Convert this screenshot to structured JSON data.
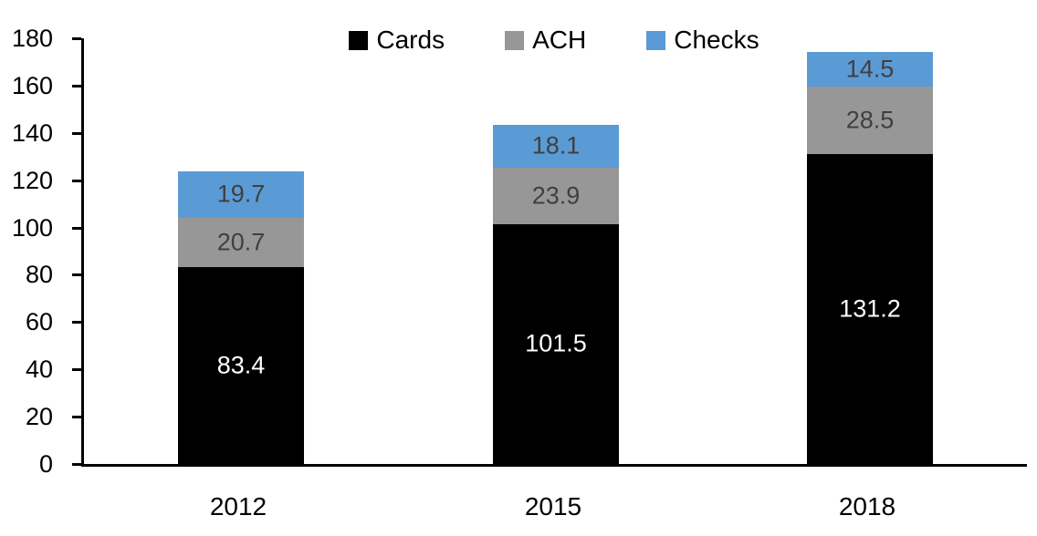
{
  "chart_data": {
    "type": "bar",
    "stacked": true,
    "title": "",
    "xlabel": "",
    "ylabel": "",
    "categories": [
      "2012",
      "2015",
      "2018"
    ],
    "series": [
      {
        "name": "Cards",
        "color": "#000000",
        "label_color": "#ffffff",
        "values": [
          83.4,
          101.5,
          131.2
        ]
      },
      {
        "name": "ACH",
        "color": "#979797",
        "label_color": "#404040",
        "values": [
          20.7,
          23.9,
          28.5
        ]
      },
      {
        "name": "Checks",
        "color": "#5b9bd5",
        "label_color": "#404040",
        "values": [
          19.7,
          18.1,
          14.5
        ]
      }
    ],
    "ylim": [
      0,
      180
    ],
    "ytick_step": 20,
    "ytick_labels": [
      "0",
      "20",
      "40",
      "60",
      "80",
      "100",
      "120",
      "140",
      "160",
      "180"
    ],
    "grid": false,
    "legend_position": "top-center",
    "axis_color": "#000000",
    "background_color": "#ffffff"
  }
}
